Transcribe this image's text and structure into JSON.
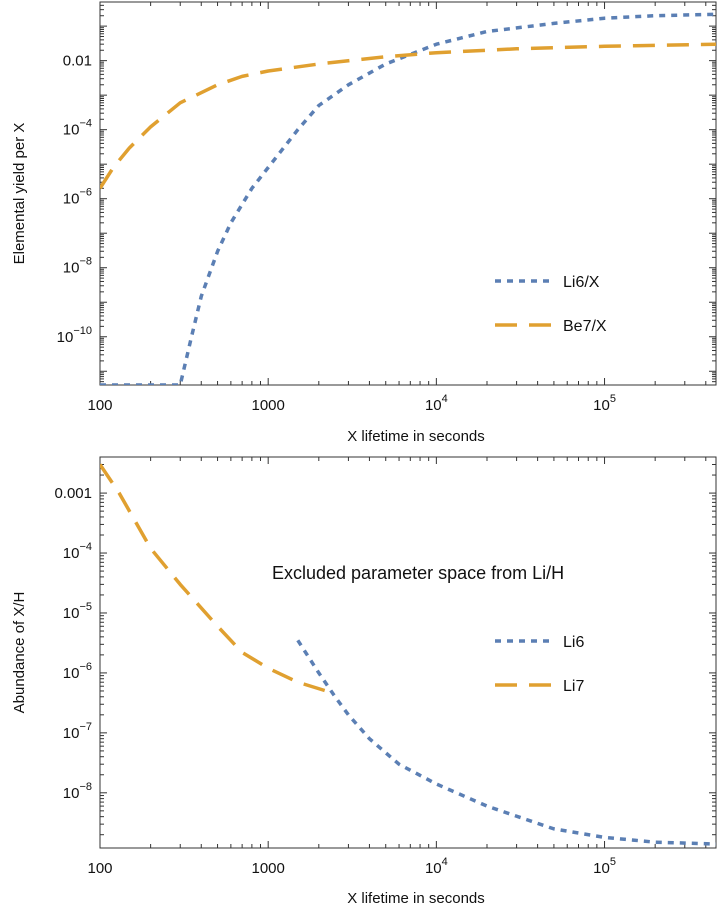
{
  "chart_data": [
    {
      "type": "line",
      "xlabel": "X lifetime in seconds",
      "ylabel": "Elemental yield per X",
      "xscale": "log",
      "yscale": "log",
      "xlim": [
        100,
        460000
      ],
      "ylim": [
        4e-12,
        0.5
      ],
      "xticks": [
        {
          "value": 100,
          "mant": "100",
          "exp": ""
        },
        {
          "value": 1000,
          "mant": "1000",
          "exp": ""
        },
        {
          "value": 10000,
          "mant": "10",
          "exp": "4"
        },
        {
          "value": 100000,
          "mant": "10",
          "exp": "5"
        }
      ],
      "yticks": [
        {
          "value": 0.01,
          "mant": "0.01",
          "exp": ""
        },
        {
          "value": 0.0001,
          "mant": "10",
          "exp": "−4"
        },
        {
          "value": 1e-06,
          "mant": "10",
          "exp": "−6"
        },
        {
          "value": 1e-08,
          "mant": "10",
          "exp": "−8"
        },
        {
          "value": 1e-10,
          "mant": "10",
          "exp": "−10"
        }
      ],
      "legend_position": "right-middle",
      "annotation": "",
      "series": [
        {
          "name": "Li6/X",
          "color": "#5B7FB4",
          "style": "dotted",
          "x": [
            100,
            300,
            350,
            400,
            500,
            600,
            800,
            1000,
            1500,
            2000,
            3000,
            5000,
            10000,
            20000,
            50000,
            100000,
            200000,
            460000
          ],
          "y": [
            4e-12,
            4e-12,
            1e-10,
            1.5e-09,
            3e-08,
            2e-07,
            2e-06,
            8e-06,
            0.0001,
            0.0005,
            0.002,
            0.008,
            0.03,
            0.07,
            0.12,
            0.17,
            0.2,
            0.22
          ]
        },
        {
          "name": "Be7/X",
          "color": "#E0A030",
          "style": "dashed",
          "x": [
            100,
            120,
            150,
            200,
            300,
            500,
            700,
            1000,
            2000,
            5000,
            10000,
            30000,
            100000,
            460000
          ],
          "y": [
            2e-06,
            8e-06,
            3e-05,
            0.00012,
            0.0006,
            0.002,
            0.0035,
            0.005,
            0.008,
            0.013,
            0.017,
            0.022,
            0.026,
            0.03
          ]
        }
      ]
    },
    {
      "type": "line",
      "xlabel": "X lifetime in seconds",
      "ylabel": "Abundance of X/H",
      "xscale": "log",
      "yscale": "log",
      "xlim": [
        100,
        460000
      ],
      "ylim": [
        1.2e-09,
        0.004
      ],
      "xticks": [
        {
          "value": 100,
          "mant": "100",
          "exp": ""
        },
        {
          "value": 1000,
          "mant": "1000",
          "exp": ""
        },
        {
          "value": 10000,
          "mant": "10",
          "exp": "4"
        },
        {
          "value": 100000,
          "mant": "10",
          "exp": "5"
        }
      ],
      "yticks": [
        {
          "value": 0.001,
          "mant": "0.001",
          "exp": ""
        },
        {
          "value": 0.0001,
          "mant": "10",
          "exp": "−4"
        },
        {
          "value": 1e-05,
          "mant": "10",
          "exp": "−5"
        },
        {
          "value": 1e-06,
          "mant": "10",
          "exp": "−6"
        },
        {
          "value": 1e-07,
          "mant": "10",
          "exp": "−7"
        },
        {
          "value": 1e-08,
          "mant": "10",
          "exp": "−8"
        }
      ],
      "legend_position": "right-middle",
      "annotation": "Excluded parameter space from Li/H",
      "series": [
        {
          "name": "Li6",
          "color": "#5B7FB4",
          "style": "dotted",
          "x": [
            1500,
            2000,
            2500,
            3000,
            4000,
            6000,
            10000,
            20000,
            50000,
            100000,
            200000,
            460000
          ],
          "y": [
            3.5e-06,
            1e-06,
            4e-07,
            2e-07,
            8e-08,
            3e-08,
            1.4e-08,
            6e-09,
            2.5e-09,
            1.8e-09,
            1.5e-09,
            1.4e-09
          ]
        },
        {
          "name": "Li7",
          "color": "#E0A030",
          "style": "dashed",
          "x": [
            100,
            130,
            200,
            300,
            500,
            700,
            1000,
            1500,
            2500
          ],
          "y": [
            0.003,
            0.001,
            0.00012,
            3e-05,
            6e-06,
            2.2e-06,
            1.2e-06,
            7e-07,
            4.5e-07
          ]
        }
      ]
    }
  ]
}
